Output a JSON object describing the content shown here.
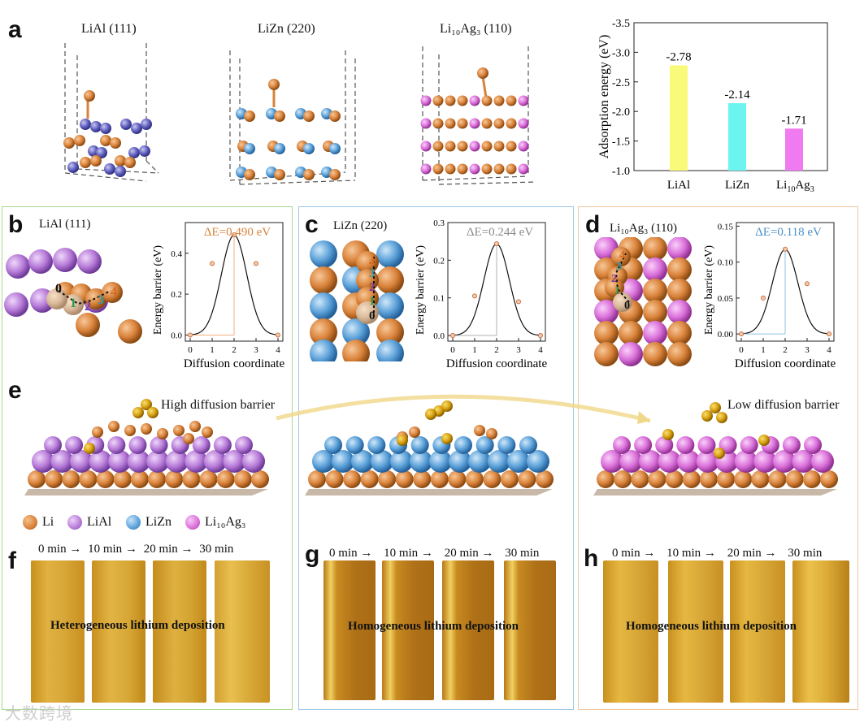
{
  "panels": {
    "a": {
      "letter": "a",
      "structures": [
        {
          "title": "LiAl (111)"
        },
        {
          "title": "LiZn (220)"
        },
        {
          "title": "Li₁₀Ag₃ (110)"
        }
      ]
    },
    "b": {
      "letter": "b",
      "title": "LiAl (111)",
      "delta_e": "ΔE=0.490 eV",
      "site_labels": [
        "0",
        "1",
        "2",
        "3",
        "4"
      ]
    },
    "c": {
      "letter": "c",
      "title": "LiZn (220)",
      "delta_e": "ΔE=0.244 eV",
      "site_labels": [
        "0",
        "1",
        "2",
        "3",
        "4"
      ]
    },
    "d": {
      "letter": "d",
      "title": "Li₁₀Ag₃ (110)",
      "delta_e": "ΔE=0.118 eV",
      "site_labels": [
        "0",
        "1",
        "2",
        "3",
        "4"
      ]
    },
    "e": {
      "letter": "e",
      "high_label": "High diffusion barrier",
      "low_label": "Low diffusion barrier"
    },
    "f": {
      "letter": "f",
      "caption": "Heterogeneous lithium deposition"
    },
    "g": {
      "letter": "g",
      "caption": "Homogeneous lithium deposition"
    },
    "h": {
      "letter": "h",
      "caption": "Homogeneous lithium deposition"
    }
  },
  "times": [
    "0 min",
    "10 min",
    "20 min",
    "30 min"
  ],
  "legend": [
    {
      "label": "Li",
      "color": "#d9823a"
    },
    {
      "label": "LiAl",
      "color": "#b77ad8"
    },
    {
      "label": "LiZn",
      "color": "#5aa0d8"
    },
    {
      "label": "Li₁₀Ag₃",
      "color": "#d96fd9"
    }
  ],
  "colors": {
    "box_b": "#a8d890",
    "box_c": "#9ec8e8",
    "box_d": "#f0c8a0",
    "delta_b": "#d9823a",
    "delta_c": "#8a8a8a",
    "delta_d": "#4a90c8"
  },
  "chart_data": [
    {
      "type": "bar",
      "title": "",
      "categories": [
        "LiAl",
        "LiZn",
        "Li10Ag3"
      ],
      "category_labels_main": [
        "LiAl",
        "LiZn",
        "Li"
      ],
      "category_label_sub": "10",
      "category_label_tail": "Ag",
      "category_label_sub2": "3",
      "values": [
        -2.78,
        -2.14,
        -1.71
      ],
      "value_labels": [
        "-2.78",
        "-2.14",
        "-1.71"
      ],
      "colors": [
        "#fafa7a",
        "#6cf5f0",
        "#f07af0"
      ],
      "ylabel": "Adsorption energy (eV)",
      "ylim": [
        -1.0,
        -3.5
      ],
      "yticks": [
        "-3.5",
        "-3.0",
        "-2.5",
        "-2.0",
        "-1.5",
        "-1.0"
      ]
    },
    {
      "type": "line",
      "panel": "b",
      "xlabel": "Diffusion coordinate",
      "ylabel": "Energy barrier (eV)",
      "x": [
        0,
        1,
        2,
        3,
        4
      ],
      "y": [
        0.0,
        0.35,
        0.49,
        0.35,
        0.0
      ],
      "xticks": [
        "0",
        "1",
        "2",
        "3",
        "4"
      ],
      "yticks": [
        "0.0",
        "0.2",
        "0.4"
      ],
      "ylim": [
        -0.03,
        0.55
      ]
    },
    {
      "type": "line",
      "panel": "c",
      "xlabel": "Diffusion coordinate",
      "ylabel": "Energy barrier (eV)",
      "x": [
        0,
        1,
        2,
        3,
        4
      ],
      "y": [
        0.0,
        0.105,
        0.244,
        0.09,
        0.0
      ],
      "xticks": [
        "0",
        "1",
        "2",
        "3",
        "4"
      ],
      "yticks": [
        "0.0",
        "0.1",
        "0.2",
        "0.3"
      ],
      "ylim": [
        -0.015,
        0.3
      ]
    },
    {
      "type": "line",
      "panel": "d",
      "xlabel": "Diffusion coordinate",
      "ylabel": "Energy barrier (eV)",
      "x": [
        0,
        1,
        2,
        3,
        4
      ],
      "y": [
        0.0,
        0.05,
        0.118,
        0.07,
        0.0
      ],
      "xticks": [
        "0",
        "1",
        "2",
        "3",
        "4"
      ],
      "yticks": [
        "0.00",
        "0.05",
        "0.10",
        "0.15"
      ],
      "ylim": [
        -0.01,
        0.155
      ]
    }
  ],
  "watermark": "大数跨境"
}
